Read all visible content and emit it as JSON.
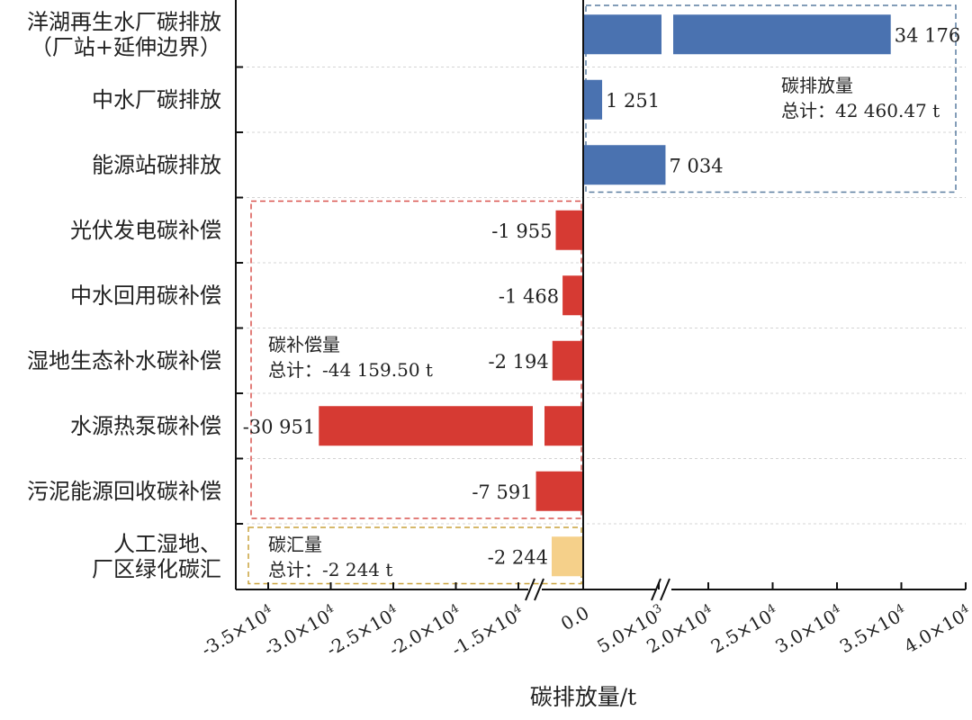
{
  "chart_data": {
    "type": "bar",
    "orientation": "horizontal",
    "broken_axis": true,
    "xlabel": "碳排放量/t",
    "categories": [
      [
        "洋湖再生水厂碳排放",
        "（厂站+延伸边界）"
      ],
      [
        "中水厂碳排放"
      ],
      [
        "能源站碳排放"
      ],
      [
        "光伏发电碳补偿"
      ],
      [
        "中水回用碳补偿"
      ],
      [
        "湿地生态补水碳补偿"
      ],
      [
        "水源热泵碳补偿"
      ],
      [
        "污泥能源回收碳补偿"
      ],
      [
        "人工湿地、",
        "厂区绿化碳汇"
      ]
    ],
    "values": [
      34176,
      1251,
      7034,
      -1955,
      -1468,
      -2194,
      -30951,
      -7591,
      -2244
    ],
    "value_labels": [
      "34 176",
      "1 251",
      "7 034",
      "-1 955",
      "-1 468",
      "-2 194",
      "-30 951",
      "-7 591",
      "-2 244"
    ],
    "group": [
      "emission",
      "emission",
      "emission",
      "compensation",
      "compensation",
      "compensation",
      "compensation",
      "compensation",
      "sink"
    ],
    "colors": {
      "emission": "#4a72b0",
      "compensation": "#d63a33",
      "sink": "#f5d08a"
    },
    "x_ticks_left": [
      {
        "value": -35000,
        "base": "-3.5×10",
        "exp": "4"
      },
      {
        "value": -30000,
        "base": "-3.0×10",
        "exp": "4"
      },
      {
        "value": -25000,
        "base": "-2.5×10",
        "exp": "4"
      },
      {
        "value": -20000,
        "base": "-2.0×10",
        "exp": "4"
      },
      {
        "value": -15000,
        "base": "-1.5×10",
        "exp": "4"
      }
    ],
    "x_ticks_right": [
      {
        "value": 0,
        "base": "0.0",
        "exp": ""
      },
      {
        "value": 5000,
        "base": "5.0×10",
        "exp": "3"
      },
      {
        "value": 20000,
        "base": "2.0×10",
        "exp": "4"
      },
      {
        "value": 25000,
        "base": "2.5×10",
        "exp": "4"
      },
      {
        "value": 30000,
        "base": "3.0×10",
        "exp": "4"
      },
      {
        "value": 35000,
        "base": "3.5×10",
        "exp": "4"
      },
      {
        "value": 40000,
        "base": "4.0×10",
        "exp": "4"
      }
    ],
    "groups_annotation": [
      {
        "key": "emission",
        "line1": "碳排放量",
        "line2": "总计：42 460.47 t",
        "border": "#5a7da0"
      },
      {
        "key": "compensation",
        "line1": "碳补偿量",
        "line2": "总计：-44 159.50 t",
        "border": "#d9534f"
      },
      {
        "key": "sink",
        "line1": "碳汇量",
        "line2": "总计：-2 244 t",
        "border": "#c9a23c"
      }
    ],
    "grid": true
  }
}
